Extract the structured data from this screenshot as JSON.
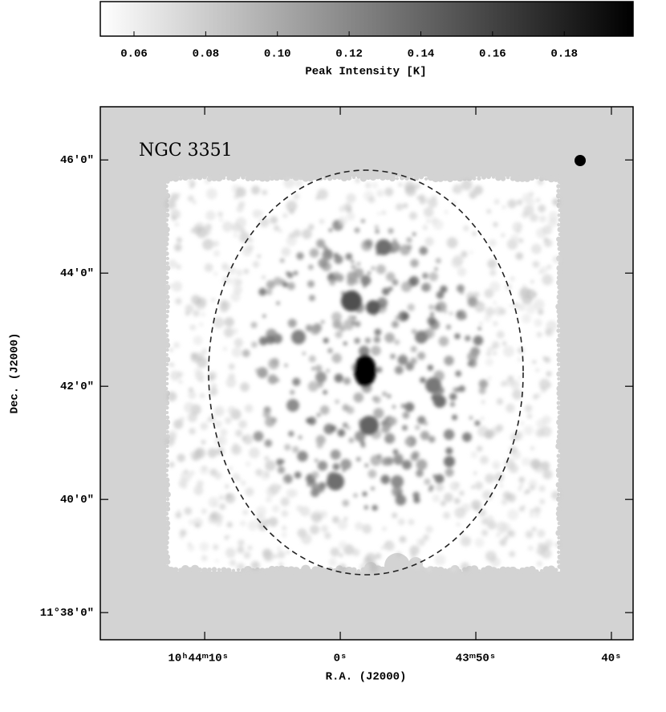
{
  "chart_data": {
    "type": "image",
    "title": "NGC 3351",
    "colorbar": {
      "label": "Peak Intensity [K]",
      "lim": [
        0.0506,
        0.1992
      ],
      "ticks": [
        0.06,
        0.08,
        {
          "value": 0.1,
          "label": "0.10"
        },
        0.12,
        0.14,
        0.16,
        0.18
      ]
    },
    "x_label": "R.A. (J2000)",
    "y_label": "Dec. (J2000)",
    "xlim": [
      17.7,
      -21.6
    ],
    "xticks": [
      {
        "value": 10,
        "label": "10ʰ44ᵐ10ˢ"
      },
      {
        "value": 0,
        "label": "0ˢ"
      },
      {
        "value": -10,
        "label": "43ᵐ50ˢ"
      },
      {
        "value": -20,
        "label": "40ˢ"
      }
    ],
    "ylim": [
      37.52,
      46.94
    ],
    "yticks": [
      {
        "value": 46,
        "label": "46′0″"
      },
      {
        "value": 44,
        "label": "44′0″"
      },
      {
        "value": 42,
        "label": "42′0″"
      },
      {
        "value": 40,
        "label": "40′0″"
      },
      {
        "value": 38,
        "label": "11°38′0″"
      }
    ]
  }
}
